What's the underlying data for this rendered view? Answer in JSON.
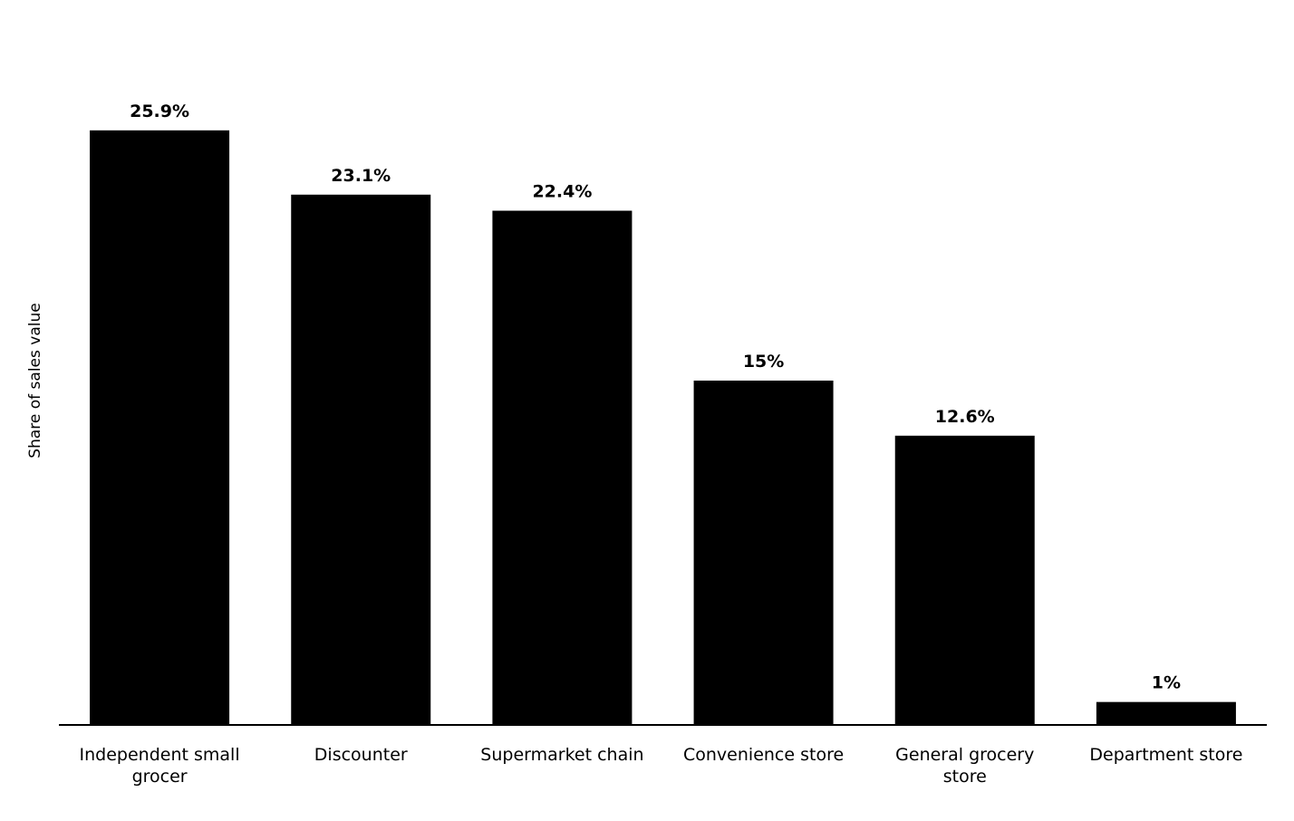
{
  "chart_data": {
    "type": "bar",
    "y_label": "Share of sales value",
    "categories": [
      "Independent small grocer",
      "Discounter",
      "Supermarket chain",
      "Convenience store",
      "General grocery store",
      "Department store"
    ],
    "values": [
      25.9,
      23.1,
      22.4,
      15,
      12.6,
      1
    ],
    "value_labels": [
      "25.9%",
      "23.1%",
      "22.4%",
      "15%",
      "12.6%",
      "1%"
    ],
    "color": "#000000",
    "ylim": [
      0,
      30
    ]
  }
}
